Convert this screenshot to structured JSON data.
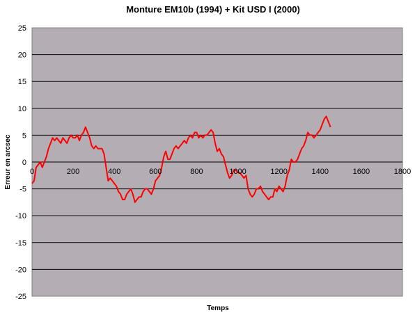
{
  "chart_data": {
    "type": "line",
    "title": "Monture EM10b (1994) + Kit USD I (2000)",
    "xlabel": "Temps",
    "ylabel": "Erreur en arcsec",
    "xlim": [
      0,
      1800
    ],
    "ylim": [
      -25,
      25
    ],
    "x_ticks": [
      0,
      200,
      400,
      600,
      800,
      1000,
      1200,
      1400,
      1600,
      1800
    ],
    "y_ticks": [
      25,
      20,
      15,
      10,
      5,
      0,
      -5,
      -10,
      -15,
      -20,
      -25
    ],
    "grid": "horizontal",
    "colors": {
      "plot_area": "#b4adb4",
      "series": "#ff0000",
      "gridline": "#000000"
    },
    "series": [
      {
        "color": "#ff0000",
        "x": [
          0,
          10,
          20,
          30,
          40,
          50,
          60,
          70,
          80,
          90,
          100,
          110,
          120,
          130,
          140,
          150,
          160,
          170,
          180,
          190,
          200,
          210,
          220,
          230,
          240,
          250,
          260,
          270,
          280,
          290,
          300,
          310,
          320,
          330,
          340,
          350,
          360,
          370,
          380,
          390,
          400,
          410,
          420,
          430,
          440,
          450,
          460,
          470,
          480,
          490,
          500,
          510,
          520,
          530,
          540,
          550,
          560,
          570,
          580,
          590,
          600,
          610,
          620,
          630,
          640,
          650,
          660,
          670,
          680,
          690,
          700,
          710,
          720,
          730,
          740,
          750,
          760,
          770,
          780,
          790,
          800,
          810,
          820,
          830,
          840,
          850,
          860,
          870,
          880,
          890,
          900,
          910,
          920,
          930,
          940,
          950,
          960,
          970,
          980,
          990,
          1000,
          1010,
          1020,
          1030,
          1040,
          1050,
          1060,
          1070,
          1080,
          1090,
          1100,
          1110,
          1120,
          1130,
          1140,
          1150,
          1160,
          1170,
          1180,
          1190,
          1200,
          1210,
          1220,
          1230,
          1240,
          1250,
          1260,
          1270,
          1280,
          1290,
          1300,
          1310,
          1320,
          1330,
          1340,
          1350,
          1360,
          1370,
          1380,
          1390,
          1400,
          1410,
          1420,
          1430,
          1440,
          1450
        ],
        "y": [
          -4,
          -3.5,
          -1,
          -0.5,
          0,
          -1,
          0,
          1,
          2.5,
          3.5,
          4.5,
          4,
          4.5,
          4,
          3.5,
          4.5,
          4,
          3.5,
          4.5,
          5,
          4.5,
          4.5,
          5,
          4,
          5,
          5.5,
          6.5,
          5.5,
          4.5,
          3,
          2.5,
          3,
          2.5,
          2.5,
          2.5,
          1.5,
          -1,
          -3.5,
          -3,
          -3.5,
          -4,
          -4.5,
          -5.5,
          -6,
          -7,
          -7,
          -6,
          -5.5,
          -5,
          -6,
          -7.5,
          -7,
          -6.5,
          -6.5,
          -5.5,
          -5,
          -5,
          -5.5,
          -6,
          -5,
          -3.5,
          -3,
          -2.5,
          -1,
          1,
          2,
          0.5,
          0.5,
          1.5,
          2.5,
          3,
          2.5,
          3,
          3.5,
          4,
          3.5,
          4.5,
          5,
          4.5,
          5.5,
          5.5,
          4.5,
          5,
          4.5,
          5,
          5,
          5.5,
          6,
          5.5,
          3.5,
          2,
          2.5,
          1.5,
          1,
          -0.5,
          -2,
          -3,
          -2.5,
          -1.5,
          -1.5,
          -2,
          -2,
          -2.5,
          -3,
          -2.5,
          -5,
          -6,
          -6.5,
          -6,
          -5,
          -5,
          -4.5,
          -5.5,
          -6,
          -6.5,
          -7,
          -6.5,
          -6.5,
          -5,
          -5.5,
          -4.5,
          -5,
          -5.5,
          -4.5,
          -2.5,
          -1.5,
          0.5,
          0,
          0,
          0.5,
          1.5,
          2.5,
          3,
          4,
          5.5,
          5,
          5,
          4.5,
          5,
          5.5,
          6,
          7,
          8,
          8.5,
          7.5,
          6.5
        ]
      }
    ]
  }
}
